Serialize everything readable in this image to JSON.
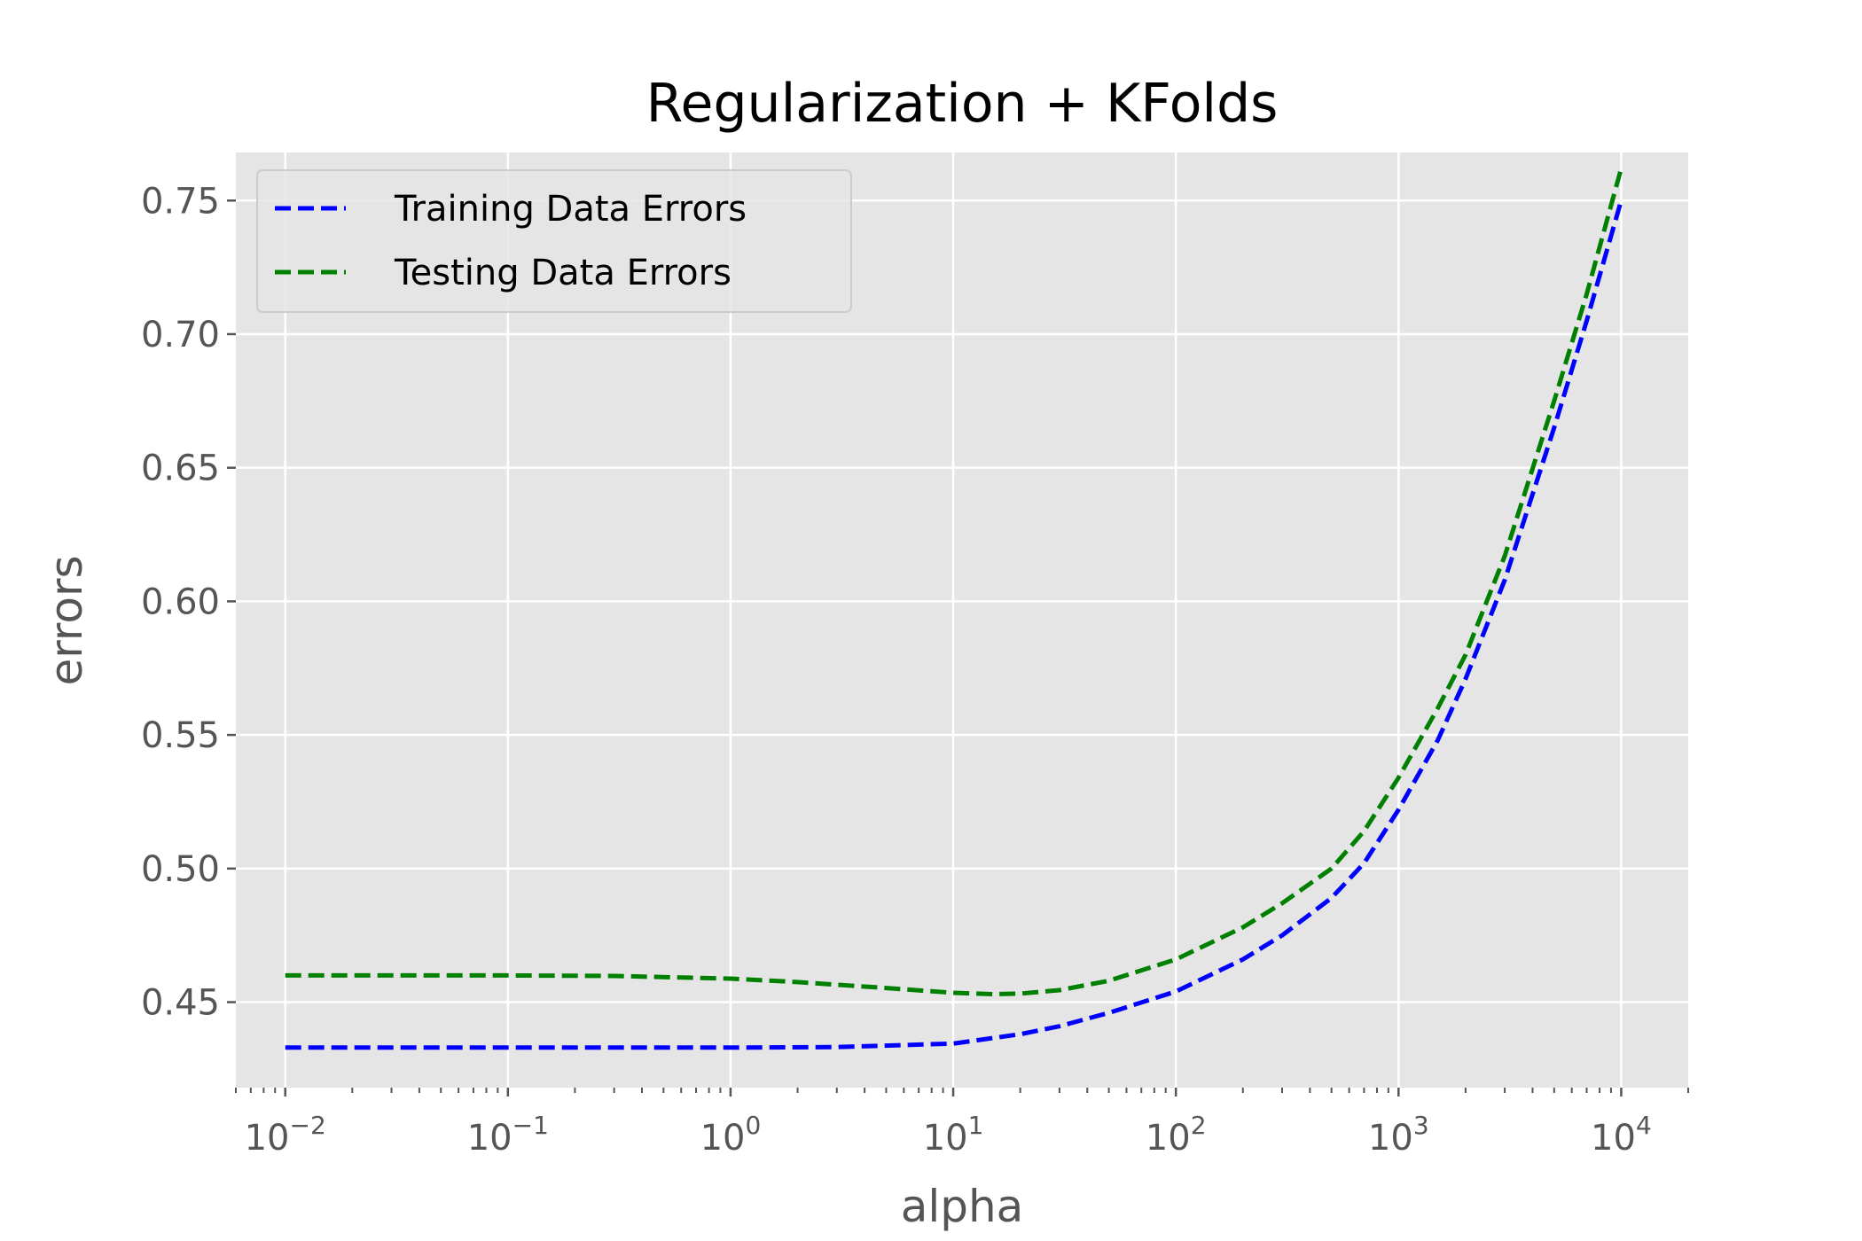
{
  "chart_data": {
    "type": "line",
    "title": "Regularization + KFolds",
    "xlabel": "alpha",
    "ylabel": "errors",
    "xscale": "log",
    "xlim": [
      0.006,
      20000
    ],
    "ylim": [
      0.418,
      0.768
    ],
    "grid": true,
    "legend_position": "top-left",
    "x_ticks": [
      0.01,
      0.1,
      1,
      10,
      100,
      1000,
      10000
    ],
    "x_tick_labels": [
      {
        "base": "10",
        "exp": "−2"
      },
      {
        "base": "10",
        "exp": "−1"
      },
      {
        "base": "10",
        "exp": "0"
      },
      {
        "base": "10",
        "exp": "1"
      },
      {
        "base": "10",
        "exp": "2"
      },
      {
        "base": "10",
        "exp": "3"
      },
      {
        "base": "10",
        "exp": "4"
      }
    ],
    "y_ticks": [
      0.45,
      0.5,
      0.55,
      0.6,
      0.65,
      0.7,
      0.75
    ],
    "y_tick_labels": [
      "0.45",
      "0.50",
      "0.55",
      "0.60",
      "0.65",
      "0.70",
      "0.75"
    ],
    "series": [
      {
        "name": "Training Data Errors",
        "color": "#0000ff",
        "style": "dashed",
        "x": [
          0.01,
          0.03,
          0.1,
          0.3,
          1,
          3,
          10,
          20,
          30,
          50,
          100,
          200,
          300,
          500,
          700,
          1000,
          1500,
          2000,
          3000,
          5000,
          7000,
          10000
        ],
        "y": [
          0.433,
          0.433,
          0.433,
          0.433,
          0.433,
          0.4332,
          0.4345,
          0.438,
          0.441,
          0.446,
          0.454,
          0.466,
          0.475,
          0.489,
          0.502,
          0.522,
          0.548,
          0.571,
          0.608,
          0.665,
          0.705,
          0.75
        ]
      },
      {
        "name": "Testing Data Errors",
        "color": "#008000",
        "style": "dashed",
        "x": [
          0.01,
          0.03,
          0.1,
          0.3,
          1,
          2,
          5,
          10,
          15,
          20,
          30,
          50,
          100,
          200,
          300,
          500,
          700,
          1000,
          1500,
          2000,
          3000,
          5000,
          7000,
          10000
        ],
        "y": [
          0.46,
          0.46,
          0.46,
          0.4598,
          0.4588,
          0.4575,
          0.4553,
          0.4535,
          0.453,
          0.4532,
          0.4545,
          0.458,
          0.466,
          0.478,
          0.487,
          0.5,
          0.514,
          0.534,
          0.56,
          0.58,
          0.617,
          0.675,
          0.715,
          0.762
        ]
      }
    ]
  }
}
